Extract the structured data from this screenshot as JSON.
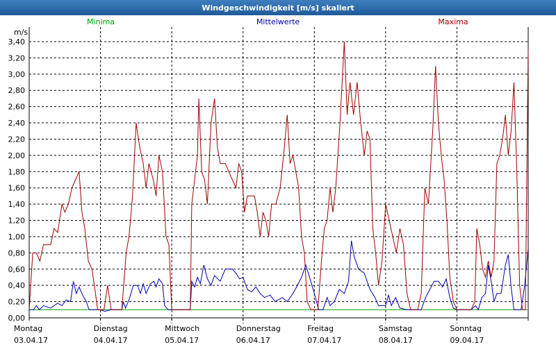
{
  "window": {
    "title": "Windgeschwindigkeit [m/s] skaliert"
  },
  "chart_data": {
    "type": "line",
    "title": "Windgeschwindigkeit [m/s] skaliert",
    "ylabel": "m/s",
    "ylim": [
      0,
      3.5
    ],
    "yticks": [
      "0,00",
      "0,20",
      "0,40",
      "0,60",
      "0,80",
      "1,00",
      "1,20",
      "1,40",
      "1,60",
      "1,80",
      "2,00",
      "2,20",
      "2,40",
      "2,60",
      "2,80",
      "3,00",
      "3,20",
      "3,40"
    ],
    "xlim": [
      0,
      7
    ],
    "days": [
      {
        "weekday": "Montag",
        "date": "03.04.17"
      },
      {
        "weekday": "Dienstag",
        "date": "04.04.17"
      },
      {
        "weekday": "Mittwoch",
        "date": "05.04.17"
      },
      {
        "weekday": "Donnerstag",
        "date": "06.04.17"
      },
      {
        "weekday": "Freitag",
        "date": "07.04.17"
      },
      {
        "weekday": "Samstag",
        "date": "08.04.17"
      },
      {
        "weekday": "Sonntag",
        "date": "09.04.17"
      }
    ],
    "grid": true,
    "series": [
      {
        "name": "Minima",
        "color": "#00a000",
        "points": [
          [
            0,
            0.1
          ],
          [
            7,
            0.1
          ]
        ]
      },
      {
        "name": "Mittelwerte",
        "color": "#0000b0",
        "points": [
          [
            0,
            0.1
          ],
          [
            0.06,
            0.1
          ],
          [
            0.1,
            0.15
          ],
          [
            0.14,
            0.1
          ],
          [
            0.2,
            0.15
          ],
          [
            0.3,
            0.12
          ],
          [
            0.4,
            0.18
          ],
          [
            0.46,
            0.15
          ],
          [
            0.52,
            0.22
          ],
          [
            0.58,
            0.2
          ],
          [
            0.62,
            0.45
          ],
          [
            0.66,
            0.3
          ],
          [
            0.7,
            0.38
          ],
          [
            0.75,
            0.28
          ],
          [
            0.8,
            0.2
          ],
          [
            0.84,
            0.1
          ],
          [
            0.9,
            0.1
          ],
          [
            1.0,
            0.1
          ],
          [
            1.06,
            0.08
          ],
          [
            1.15,
            0.1
          ],
          [
            1.3,
            0.1
          ],
          [
            1.32,
            0.2
          ],
          [
            1.35,
            0.12
          ],
          [
            1.4,
            0.22
          ],
          [
            1.46,
            0.4
          ],
          [
            1.52,
            0.4
          ],
          [
            1.56,
            0.3
          ],
          [
            1.6,
            0.42
          ],
          [
            1.64,
            0.3
          ],
          [
            1.7,
            0.42
          ],
          [
            1.75,
            0.45
          ],
          [
            1.78,
            0.38
          ],
          [
            1.82,
            0.48
          ],
          [
            1.87,
            0.42
          ],
          [
            1.9,
            0.15
          ],
          [
            1.95,
            0.1
          ],
          [
            2.0,
            0.1
          ],
          [
            2.2,
            0.1
          ],
          [
            2.26,
            0.1
          ],
          [
            2.28,
            0.45
          ],
          [
            2.32,
            0.38
          ],
          [
            2.36,
            0.5
          ],
          [
            2.4,
            0.42
          ],
          [
            2.45,
            0.65
          ],
          [
            2.5,
            0.48
          ],
          [
            2.55,
            0.4
          ],
          [
            2.6,
            0.52
          ],
          [
            2.68,
            0.45
          ],
          [
            2.75,
            0.6
          ],
          [
            2.85,
            0.6
          ],
          [
            2.9,
            0.55
          ],
          [
            2.95,
            0.48
          ],
          [
            3.0,
            0.5
          ],
          [
            3.06,
            0.35
          ],
          [
            3.12,
            0.32
          ],
          [
            3.18,
            0.38
          ],
          [
            3.24,
            0.3
          ],
          [
            3.3,
            0.25
          ],
          [
            3.38,
            0.28
          ],
          [
            3.45,
            0.2
          ],
          [
            3.55,
            0.25
          ],
          [
            3.62,
            0.2
          ],
          [
            3.7,
            0.3
          ],
          [
            3.75,
            0.38
          ],
          [
            3.82,
            0.5
          ],
          [
            3.88,
            0.65
          ],
          [
            3.94,
            0.48
          ],
          [
            4.0,
            0.3
          ],
          [
            4.06,
            0.1
          ],
          [
            4.12,
            0.1
          ],
          [
            4.18,
            0.25
          ],
          [
            4.22,
            0.15
          ],
          [
            4.28,
            0.2
          ],
          [
            4.35,
            0.35
          ],
          [
            4.42,
            0.3
          ],
          [
            4.48,
            0.45
          ],
          [
            4.52,
            0.95
          ],
          [
            4.56,
            0.75
          ],
          [
            4.62,
            0.6
          ],
          [
            4.7,
            0.55
          ],
          [
            4.78,
            0.35
          ],
          [
            4.85,
            0.25
          ],
          [
            4.9,
            0.15
          ],
          [
            5.0,
            0.15
          ],
          [
            5.04,
            0.28
          ],
          [
            5.08,
            0.15
          ],
          [
            5.14,
            0.25
          ],
          [
            5.2,
            0.12
          ],
          [
            5.3,
            0.1
          ],
          [
            5.4,
            0.1
          ],
          [
            5.5,
            0.1
          ],
          [
            5.56,
            0.25
          ],
          [
            5.62,
            0.35
          ],
          [
            5.68,
            0.45
          ],
          [
            5.74,
            0.45
          ],
          [
            5.8,
            0.38
          ],
          [
            5.85,
            0.48
          ],
          [
            5.9,
            0.25
          ],
          [
            5.95,
            0.12
          ],
          [
            6.0,
            0.1
          ],
          [
            6.1,
            0.1
          ],
          [
            6.2,
            0.1
          ],
          [
            6.26,
            0.15
          ],
          [
            6.3,
            0.1
          ],
          [
            6.35,
            0.25
          ],
          [
            6.4,
            0.3
          ],
          [
            6.44,
            0.65
          ],
          [
            6.48,
            0.45
          ],
          [
            6.52,
            0.2
          ],
          [
            6.56,
            0.3
          ],
          [
            6.62,
            0.3
          ],
          [
            6.68,
            0.65
          ],
          [
            6.72,
            0.78
          ],
          [
            6.76,
            0.38
          ],
          [
            6.8,
            0.1
          ],
          [
            6.9,
            0.1
          ],
          [
            6.95,
            0.4
          ],
          [
            7.0,
            0.85
          ]
        ]
      },
      {
        "name": "Maxima",
        "color": "#a00000",
        "points": [
          [
            0,
            0.1
          ],
          [
            0.05,
            0.8
          ],
          [
            0.1,
            0.8
          ],
          [
            0.15,
            0.7
          ],
          [
            0.2,
            0.9
          ],
          [
            0.3,
            0.9
          ],
          [
            0.35,
            1.1
          ],
          [
            0.4,
            1.05
          ],
          [
            0.46,
            1.4
          ],
          [
            0.5,
            1.3
          ],
          [
            0.55,
            1.4
          ],
          [
            0.6,
            1.6
          ],
          [
            0.65,
            1.7
          ],
          [
            0.7,
            1.8
          ],
          [
            0.74,
            1.3
          ],
          [
            0.78,
            1.1
          ],
          [
            0.83,
            0.7
          ],
          [
            0.88,
            0.6
          ],
          [
            0.93,
            0.3
          ],
          [
            0.96,
            0.1
          ],
          [
            1.0,
            0.1
          ],
          [
            1.05,
            0.1
          ],
          [
            1.1,
            0.4
          ],
          [
            1.15,
            0.1
          ],
          [
            1.25,
            0.1
          ],
          [
            1.3,
            0.1
          ],
          [
            1.36,
            0.8
          ],
          [
            1.4,
            1.0
          ],
          [
            1.45,
            1.5
          ],
          [
            1.5,
            2.4
          ],
          [
            1.55,
            2.1
          ],
          [
            1.6,
            1.9
          ],
          [
            1.64,
            1.6
          ],
          [
            1.68,
            1.9
          ],
          [
            1.74,
            1.7
          ],
          [
            1.78,
            1.5
          ],
          [
            1.82,
            2.0
          ],
          [
            1.87,
            1.8
          ],
          [
            1.92,
            1.0
          ],
          [
            1.96,
            0.9
          ],
          [
            2.0,
            0.1
          ],
          [
            2.1,
            0.1
          ],
          [
            2.2,
            0.1
          ],
          [
            2.26,
            0.1
          ],
          [
            2.28,
            1.4
          ],
          [
            2.32,
            1.7
          ],
          [
            2.36,
            2.0
          ],
          [
            2.38,
            2.7
          ],
          [
            2.42,
            1.8
          ],
          [
            2.46,
            1.7
          ],
          [
            2.5,
            1.4
          ],
          [
            2.55,
            2.4
          ],
          [
            2.6,
            2.7
          ],
          [
            2.64,
            2.1
          ],
          [
            2.68,
            1.9
          ],
          [
            2.75,
            1.9
          ],
          [
            2.8,
            1.8
          ],
          [
            2.85,
            1.7
          ],
          [
            2.9,
            1.6
          ],
          [
            2.94,
            1.9
          ],
          [
            2.98,
            1.8
          ],
          [
            3.02,
            1.3
          ],
          [
            3.06,
            1.5
          ],
          [
            3.1,
            1.5
          ],
          [
            3.16,
            1.5
          ],
          [
            3.2,
            1.3
          ],
          [
            3.24,
            1.0
          ],
          [
            3.28,
            1.3
          ],
          [
            3.32,
            1.2
          ],
          [
            3.36,
            1.0
          ],
          [
            3.4,
            1.4
          ],
          [
            3.46,
            1.4
          ],
          [
            3.52,
            1.6
          ],
          [
            3.58,
            2.1
          ],
          [
            3.62,
            2.5
          ],
          [
            3.66,
            1.9
          ],
          [
            3.7,
            2.0
          ],
          [
            3.74,
            1.8
          ],
          [
            3.78,
            1.6
          ],
          [
            3.82,
            1.0
          ],
          [
            3.86,
            0.8
          ],
          [
            3.9,
            0.2
          ],
          [
            3.95,
            0.1
          ],
          [
            4.05,
            0.1
          ],
          [
            4.1,
            0.7
          ],
          [
            4.14,
            1.1
          ],
          [
            4.18,
            1.2
          ],
          [
            4.22,
            1.6
          ],
          [
            4.26,
            1.3
          ],
          [
            4.3,
            1.6
          ],
          [
            4.36,
            2.4
          ],
          [
            4.42,
            3.4
          ],
          [
            4.46,
            2.5
          ],
          [
            4.5,
            2.9
          ],
          [
            4.55,
            2.5
          ],
          [
            4.6,
            2.9
          ],
          [
            4.65,
            2.4
          ],
          [
            4.7,
            2.0
          ],
          [
            4.74,
            2.3
          ],
          [
            4.78,
            2.2
          ],
          [
            4.82,
            1.1
          ],
          [
            4.86,
            0.8
          ],
          [
            4.9,
            0.4
          ],
          [
            4.95,
            0.7
          ],
          [
            5.0,
            1.4
          ],
          [
            5.05,
            1.2
          ],
          [
            5.1,
            1.0
          ],
          [
            5.15,
            0.8
          ],
          [
            5.2,
            1.1
          ],
          [
            5.25,
            0.9
          ],
          [
            5.3,
            0.3
          ],
          [
            5.35,
            0.1
          ],
          [
            5.4,
            0.1
          ],
          [
            5.45,
            0.1
          ],
          [
            5.5,
            0.3
          ],
          [
            5.55,
            1.6
          ],
          [
            5.6,
            1.4
          ],
          [
            5.66,
            2.3
          ],
          [
            5.7,
            3.1
          ],
          [
            5.74,
            2.4
          ],
          [
            5.78,
            2.0
          ],
          [
            5.82,
            1.7
          ],
          [
            5.86,
            1.2
          ],
          [
            5.9,
            0.5
          ],
          [
            5.95,
            0.2
          ],
          [
            6.0,
            0.1
          ],
          [
            6.2,
            0.1
          ],
          [
            6.25,
            0.2
          ],
          [
            6.28,
            1.1
          ],
          [
            6.32,
            0.9
          ],
          [
            6.36,
            0.6
          ],
          [
            6.4,
            0.5
          ],
          [
            6.44,
            0.7
          ],
          [
            6.48,
            0.5
          ],
          [
            6.52,
            0.7
          ],
          [
            6.56,
            1.9
          ],
          [
            6.6,
            2.0
          ],
          [
            6.64,
            2.2
          ],
          [
            6.68,
            2.5
          ],
          [
            6.72,
            2.0
          ],
          [
            6.76,
            2.3
          ],
          [
            6.8,
            2.9
          ],
          [
            6.84,
            1.8
          ],
          [
            6.88,
            0.4
          ],
          [
            6.92,
            0.1
          ],
          [
            6.96,
            0.1
          ],
          [
            7.0,
            3.3
          ]
        ]
      }
    ]
  }
}
